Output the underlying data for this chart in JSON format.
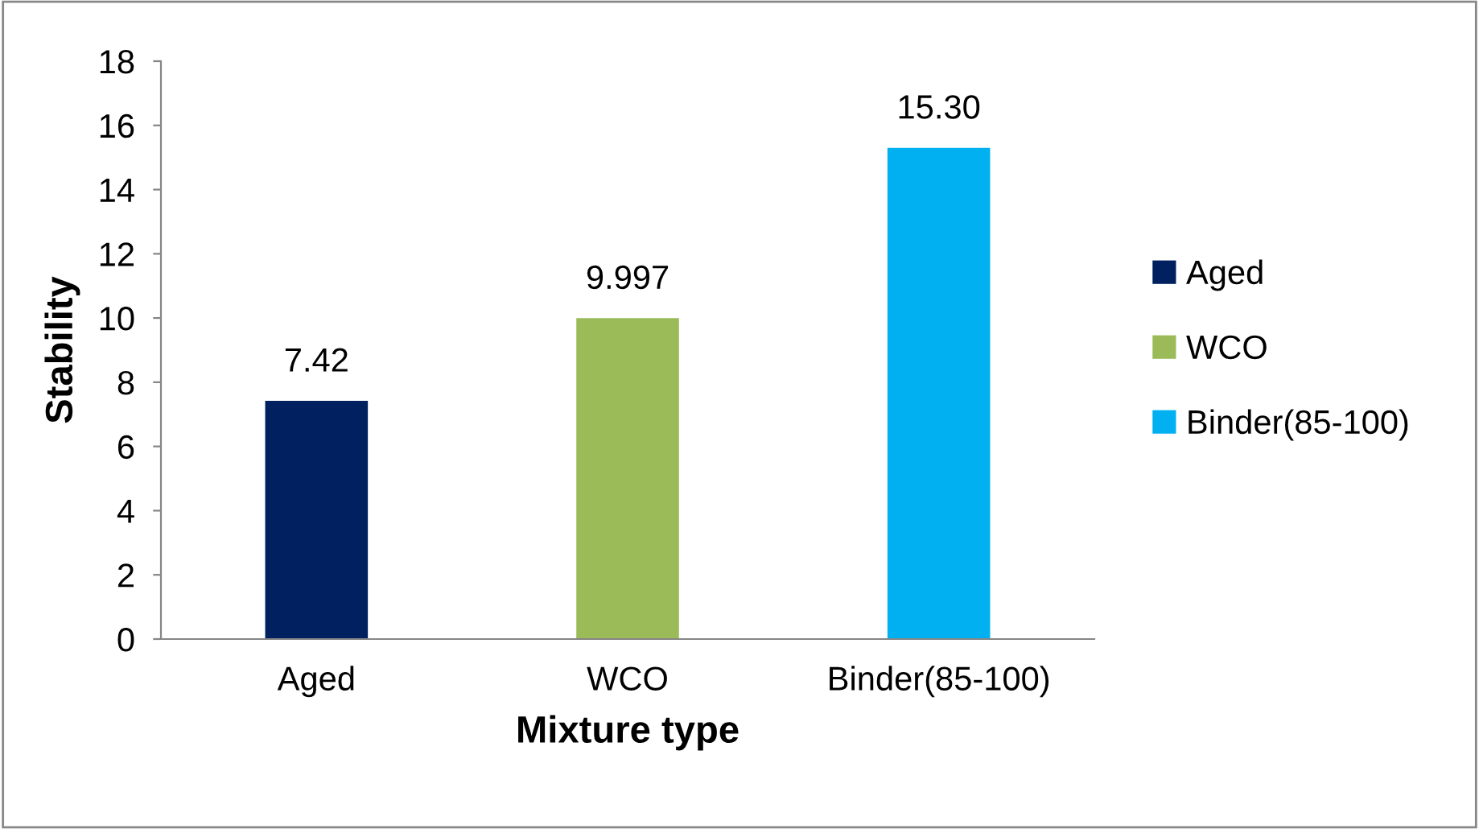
{
  "chart_data": {
    "type": "bar",
    "xlabel": "Mixture type",
    "ylabel": "Stability",
    "categories": [
      "Aged",
      "WCO",
      "Binder(85-100)"
    ],
    "stacked": true,
    "series": [
      {
        "name": "Aged",
        "color": "#002060",
        "values": [
          7.42,
          null,
          null
        ],
        "value_labels": [
          "7.42",
          null,
          null
        ]
      },
      {
        "name": "WCO",
        "color": "#9bbb59",
        "values": [
          null,
          9.997,
          null
        ],
        "value_labels": [
          null,
          "9.997",
          null
        ]
      },
      {
        "name": "Binder(85-100)",
        "color": "#00b0f0",
        "values": [
          null,
          null,
          15.3
        ],
        "value_labels": [
          null,
          null,
          "15.30"
        ]
      }
    ],
    "ylim": [
      0,
      18
    ],
    "yticks": [
      0,
      2,
      4,
      6,
      8,
      10,
      12,
      14,
      16,
      18
    ],
    "grid": false,
    "legend": "right"
  }
}
